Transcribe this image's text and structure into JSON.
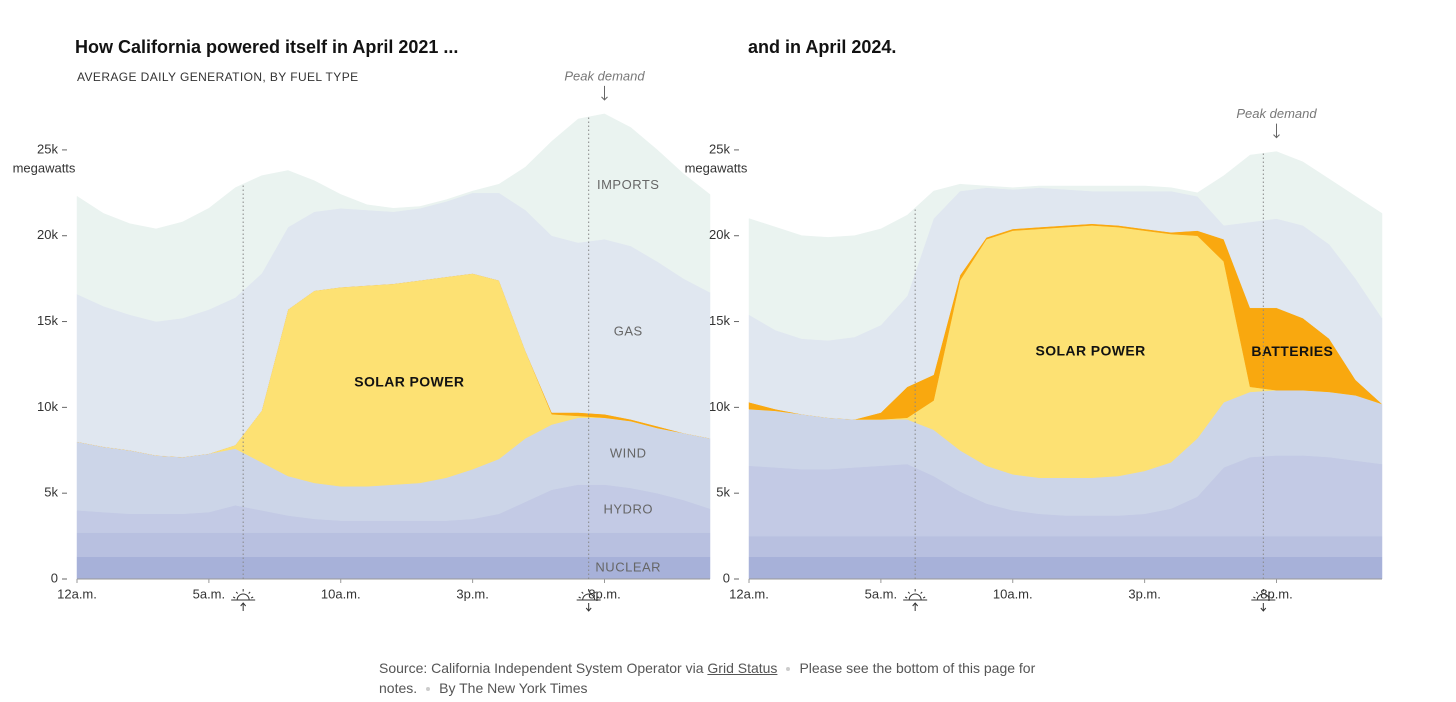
{
  "chart_data": [
    {
      "type": "stacked-area",
      "title": "How California powered itself in April 2021 ...",
      "subtitle": "AVERAGE DAILY GENERATION, BY FUEL TYPE",
      "ylabel": "megawatts",
      "x": [
        0,
        1,
        2,
        3,
        4,
        5,
        6,
        7,
        8,
        9,
        10,
        11,
        12,
        13,
        14,
        15,
        16,
        17,
        18,
        19,
        20,
        21,
        22,
        23,
        24
      ],
      "xlim": [
        0,
        24
      ],
      "xticks": [
        {
          "value": 0,
          "label": "12a.m."
        },
        {
          "value": 5,
          "label": "5a.m."
        },
        {
          "value": 10,
          "label": "10a.m."
        },
        {
          "value": 15,
          "label": "3p.m."
        },
        {
          "value": 20,
          "label": "8p.m."
        }
      ],
      "ylim": [
        0,
        27500
      ],
      "yticks": [
        0,
        {
          "value": 5000,
          "label": "5k"
        },
        {
          "value": 10000,
          "label": "10k"
        },
        {
          "value": 15000,
          "label": "15k"
        },
        {
          "value": 20000,
          "label": "20k"
        },
        {
          "value": 25000,
          "label": "25k"
        }
      ],
      "sunrise": 6.3,
      "sunset": 19.4,
      "annotation": {
        "text": "Peak demand",
        "x": 20
      },
      "series": [
        {
          "name": "NUCLEAR",
          "color": "#a7b1d9",
          "values": [
            1300,
            1300,
            1300,
            1300,
            1300,
            1300,
            1300,
            1300,
            1300,
            1300,
            1300,
            1300,
            1300,
            1300,
            1300,
            1300,
            1300,
            1300,
            1300,
            1300,
            1300,
            1300,
            1300,
            1300,
            1300
          ]
        },
        {
          "color": "#b8c0e0",
          "values": [
            1400,
            1400,
            1400,
            1400,
            1400,
            1400,
            1400,
            1400,
            1400,
            1400,
            1400,
            1400,
            1400,
            1400,
            1400,
            1400,
            1400,
            1400,
            1400,
            1400,
            1400,
            1400,
            1400,
            1400,
            1400
          ]
        },
        {
          "name": "HYDRO",
          "color": "#c3cae5",
          "values": [
            1300,
            1200,
            1100,
            1100,
            1100,
            1200,
            1600,
            1300,
            1000,
            800,
            700,
            700,
            700,
            700,
            700,
            800,
            1100,
            1800,
            2500,
            2800,
            2800,
            2600,
            2300,
            1900,
            1400
          ]
        },
        {
          "name": "WIND",
          "color": "#ccd5e8",
          "values": [
            4000,
            3800,
            3700,
            3400,
            3300,
            3400,
            3300,
            2800,
            2300,
            2100,
            2000,
            2000,
            2100,
            2200,
            2500,
            2900,
            3200,
            3700,
            3800,
            3900,
            3900,
            3900,
            3800,
            3900,
            4100
          ]
        },
        {
          "name": "SOLAR POWER",
          "color": "#fde173",
          "values": [
            0,
            0,
            0,
            0,
            0,
            0,
            200,
            3000,
            9700,
            11200,
            11600,
            11700,
            11700,
            11800,
            11700,
            11400,
            10400,
            5100,
            600,
            100,
            0,
            0,
            0,
            0,
            0
          ]
        },
        {
          "color": "#f9a80f",
          "values": [
            0,
            0,
            0,
            0,
            0,
            0,
            0,
            0,
            0,
            0,
            0,
            0,
            0,
            0,
            0,
            0,
            0,
            0,
            100,
            200,
            200,
            100,
            100,
            0,
            0
          ]
        },
        {
          "name": "GAS",
          "color": "#e0e7f0",
          "values": [
            8600,
            8200,
            7900,
            7800,
            8100,
            8400,
            8600,
            8000,
            4800,
            4600,
            4600,
            4400,
            4200,
            4200,
            4400,
            4700,
            5100,
            8200,
            10300,
            9900,
            10200,
            10100,
            9600,
            9000,
            8500
          ]
        },
        {
          "name": "IMPORTS",
          "color": "#eaf3f0",
          "values": [
            5700,
            5400,
            5300,
            5400,
            5600,
            5900,
            6400,
            5700,
            3300,
            1800,
            800,
            300,
            200,
            100,
            100,
            100,
            500,
            2500,
            5500,
            7200,
            7300,
            6900,
            6500,
            6100,
            5700
          ]
        }
      ]
    },
    {
      "type": "stacked-area",
      "title": "and in April 2024.",
      "ylabel": "megawatts",
      "x": [
        0,
        1,
        2,
        3,
        4,
        5,
        6,
        7,
        8,
        9,
        10,
        11,
        12,
        13,
        14,
        15,
        16,
        17,
        18,
        19,
        20,
        21,
        22,
        23,
        24
      ],
      "xlim": [
        0,
        24
      ],
      "xticks": [
        {
          "value": 0,
          "label": "12a.m."
        },
        {
          "value": 5,
          "label": "5a.m."
        },
        {
          "value": 10,
          "label": "10a.m."
        },
        {
          "value": 15,
          "label": "3p.m."
        },
        {
          "value": 20,
          "label": "8p.m."
        }
      ],
      "ylim": [
        0,
        27500
      ],
      "yticks": [
        0,
        {
          "value": 5000,
          "label": "5k"
        },
        {
          "value": 10000,
          "label": "10k"
        },
        {
          "value": 15000,
          "label": "15k"
        },
        {
          "value": 20000,
          "label": "20k"
        },
        {
          "value": 25000,
          "label": "25k"
        }
      ],
      "sunrise": 6.3,
      "sunset": 19.5,
      "annotation": {
        "text": "Peak demand",
        "x": 20
      },
      "series": [
        {
          "color": "#a7b1d9",
          "values": [
            1300,
            1300,
            1300,
            1300,
            1300,
            1300,
            1300,
            1300,
            1300,
            1300,
            1300,
            1300,
            1300,
            1300,
            1300,
            1300,
            1300,
            1300,
            1300,
            1300,
            1300,
            1300,
            1300,
            1300,
            1300
          ]
        },
        {
          "color": "#b8c0e0",
          "values": [
            1200,
            1200,
            1200,
            1200,
            1200,
            1200,
            1200,
            1200,
            1200,
            1200,
            1200,
            1200,
            1200,
            1200,
            1200,
            1200,
            1200,
            1200,
            1200,
            1200,
            1200,
            1200,
            1200,
            1200,
            1200
          ]
        },
        {
          "color": "#c3cae5",
          "values": [
            4100,
            4000,
            3900,
            3900,
            4000,
            4100,
            4200,
            3500,
            2600,
            1900,
            1500,
            1300,
            1200,
            1200,
            1200,
            1300,
            1600,
            2300,
            4000,
            4600,
            4700,
            4700,
            4600,
            4400,
            4200
          ]
        },
        {
          "color": "#ccd5e8",
          "values": [
            3300,
            3300,
            3200,
            3000,
            2800,
            2700,
            2600,
            2700,
            2400,
            2200,
            2100,
            2100,
            2200,
            2200,
            2300,
            2500,
            2700,
            3400,
            3800,
            3800,
            3800,
            3800,
            3800,
            3800,
            3500
          ]
        },
        {
          "name": "SOLAR POWER",
          "color": "#fde173",
          "values": [
            0,
            0,
            0,
            0,
            0,
            0,
            100,
            1700,
            9900,
            13200,
            14200,
            14500,
            14600,
            14700,
            14500,
            14000,
            13300,
            11800,
            8200,
            300,
            0,
            0,
            0,
            0,
            0
          ]
        },
        {
          "name": "BATTERIES",
          "color": "#f9a80f",
          "values": [
            400,
            100,
            0,
            0,
            0,
            400,
            1800,
            1500,
            300,
            100,
            100,
            100,
            100,
            100,
            100,
            100,
            100,
            300,
            1300,
            4600,
            4800,
            4200,
            3100,
            900,
            0
          ]
        },
        {
          "color": "#e0e7f0",
          "values": [
            5100,
            4600,
            4400,
            4500,
            4800,
            5100,
            5300,
            9100,
            4900,
            2900,
            2300,
            2300,
            2100,
            1900,
            2000,
            2200,
            2400,
            2000,
            800,
            5000,
            5200,
            5400,
            5500,
            5900,
            5000
          ]
        },
        {
          "color": "#eaf3f0",
          "values": [
            5600,
            6000,
            6000,
            6000,
            5900,
            5600,
            4700,
            1600,
            400,
            100,
            100,
            100,
            200,
            300,
            300,
            300,
            200,
            200,
            2900,
            3900,
            3900,
            3700,
            3800,
            4800,
            6100
          ]
        }
      ]
    }
  ],
  "source": {
    "text": "Source: California Independent System Operator via",
    "link": "Grid Status",
    "notes": "Please see the bottom of this page for notes.",
    "byline": "By The New York Times"
  }
}
